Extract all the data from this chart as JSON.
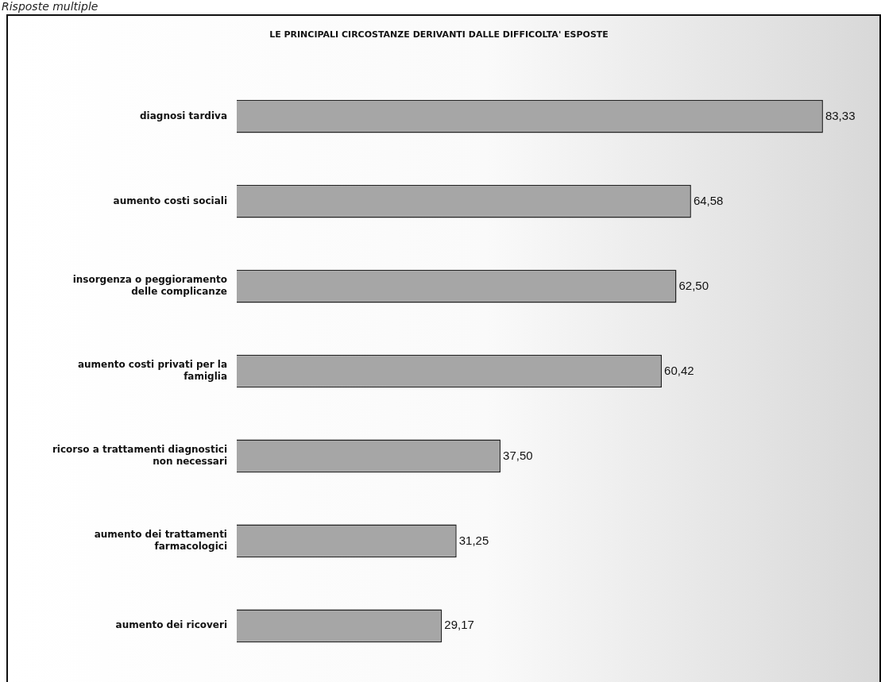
{
  "chart_data": {
    "type": "bar",
    "orientation": "horizontal",
    "title": "LE PRINCIPALI CIRCOSTANZE DERIVANTI DALLE DIFFICOLTA' ESPOSTE",
    "annotations": [
      "Risposte multiple"
    ],
    "categories": [
      "diagnosi tardiva",
      "aumento costi sociali",
      "insorgenza o peggioramento delle complicanze",
      "aumento costi privati per la famiglia",
      "ricorso a trattamenti diagnostici non necessari",
      "aumento dei trattamenti farmacologici",
      "aumento dei ricoveri"
    ],
    "values": [
      83.33,
      64.58,
      62.5,
      60.42,
      37.5,
      31.25,
      29.17
    ],
    "value_labels": [
      "83,33",
      "64,58",
      "62,50",
      "60,42",
      "37,50",
      "31,25",
      "29,17"
    ],
    "color": "#a6a6a6",
    "grid": false,
    "legend": false
  }
}
